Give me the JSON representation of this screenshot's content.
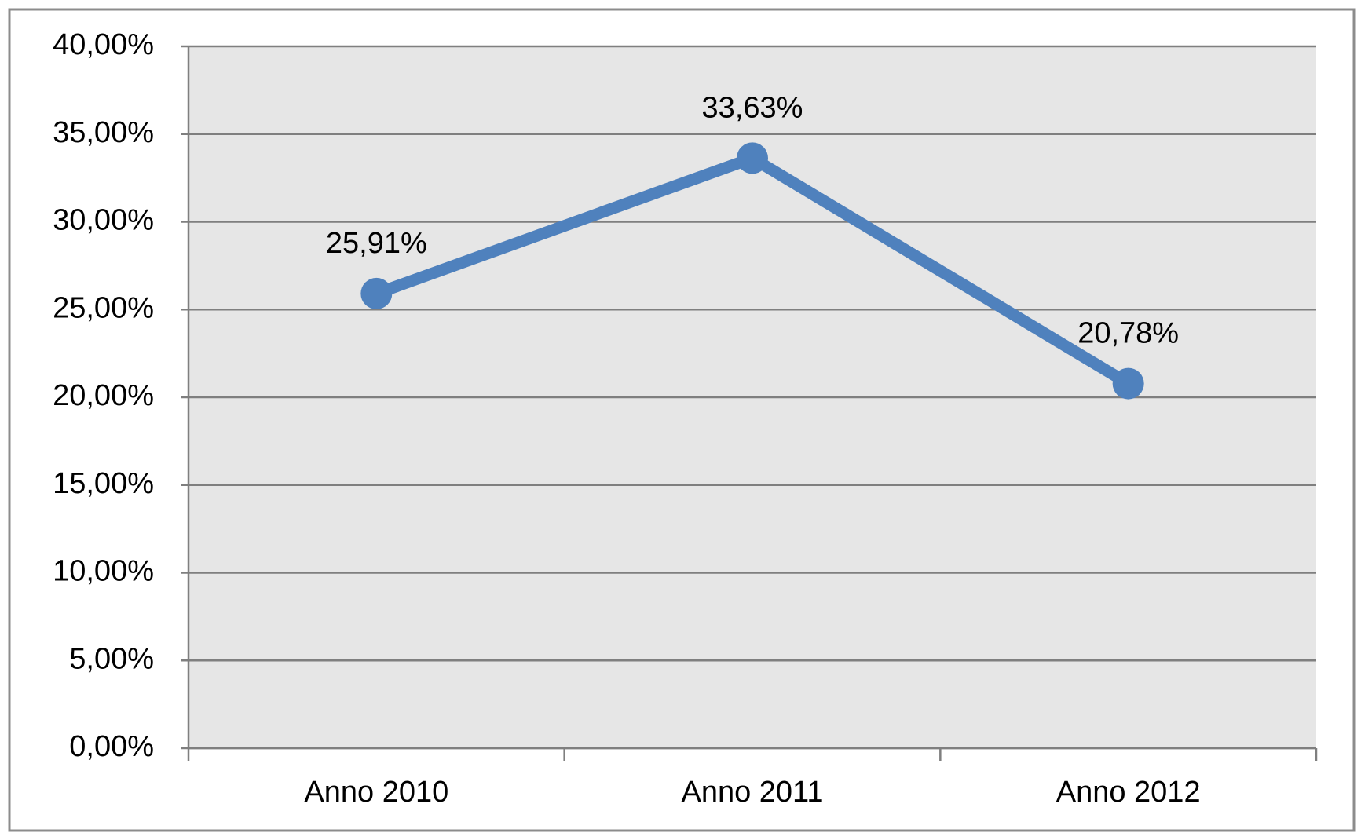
{
  "chart_data": {
    "type": "line",
    "categories": [
      "Anno 2010",
      "Anno 2011",
      "Anno 2012"
    ],
    "values": [
      25.91,
      33.63,
      20.78
    ],
    "value_labels": [
      "25,91%",
      "33,63%",
      "20,78%"
    ],
    "color": "#4f81bd",
    "ylim": [
      0,
      40
    ],
    "yticks": [
      {
        "value": 0,
        "label": "0,00%"
      },
      {
        "value": 5,
        "label": "5,00%"
      },
      {
        "value": 10,
        "label": "10,00%"
      },
      {
        "value": 15,
        "label": "15,00%"
      },
      {
        "value": 20,
        "label": "20,00%"
      },
      {
        "value": 25,
        "label": "25,00%"
      },
      {
        "value": 30,
        "label": "30,00%"
      },
      {
        "value": 35,
        "label": "35,00%"
      },
      {
        "value": 40,
        "label": "40,00%"
      }
    ],
    "grid": true
  }
}
